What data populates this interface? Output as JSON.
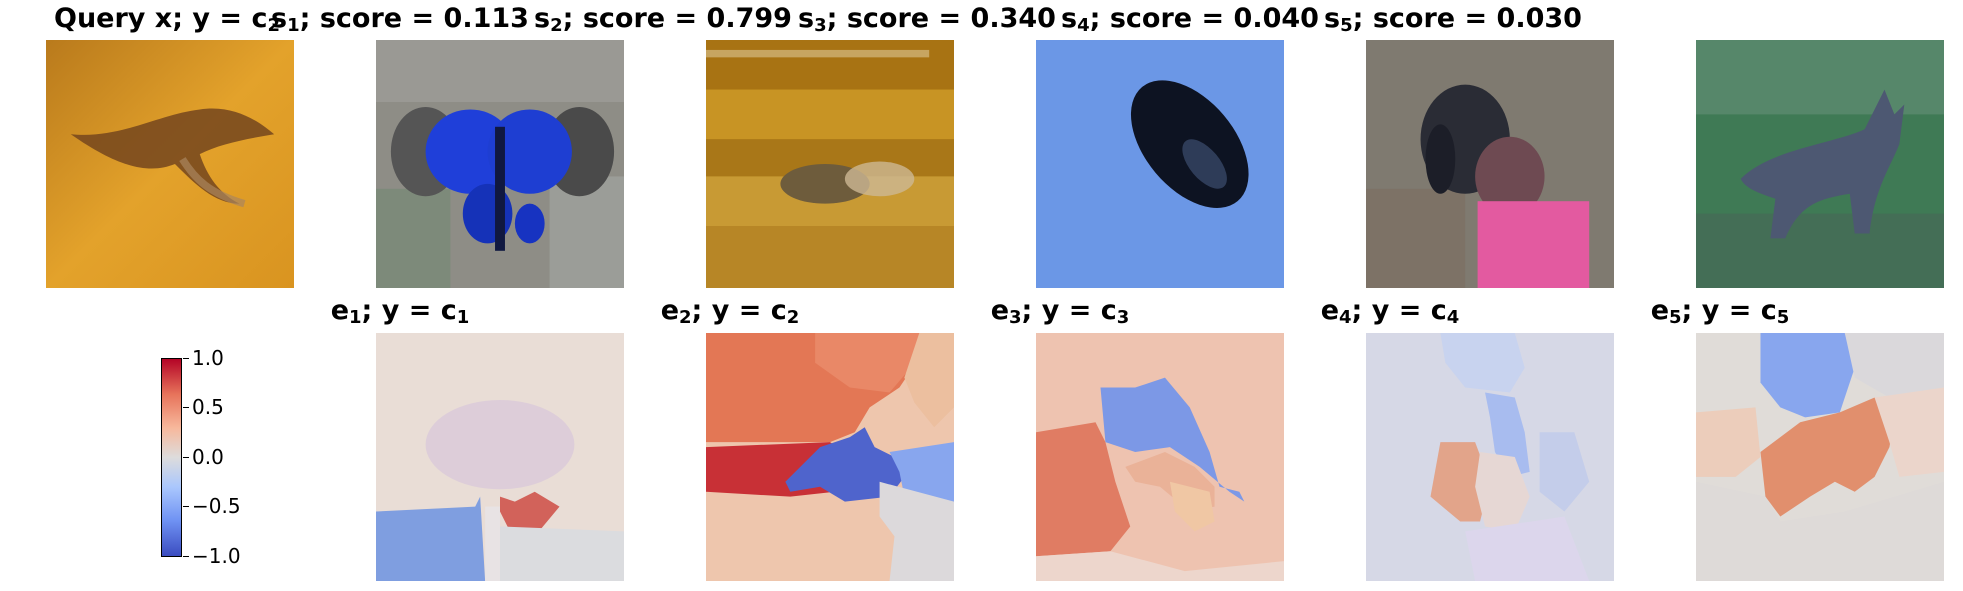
{
  "top_row": {
    "query": {
      "title_main": "Query x; y = c",
      "title_sub": "2"
    },
    "s": [
      {
        "label": "s",
        "sub": "1",
        "rest": "; score = 0.113"
      },
      {
        "label": "s",
        "sub": "2",
        "rest": "; score = 0.799"
      },
      {
        "label": "s",
        "sub": "3",
        "rest": "; score = 0.340"
      },
      {
        "label": "s",
        "sub": "4",
        "rest": "; score = 0.040"
      },
      {
        "label": "s",
        "sub": "5",
        "rest": "; score = 0.030"
      }
    ]
  },
  "bottom_row": {
    "e": [
      {
        "label": "e",
        "sub": "1",
        "rest": "; y = c",
        "csub": "1"
      },
      {
        "label": "e",
        "sub": "2",
        "rest": "; y = c",
        "csub": "2"
      },
      {
        "label": "e",
        "sub": "3",
        "rest": "; y = c",
        "csub": "3"
      },
      {
        "label": "e",
        "sub": "4",
        "rest": "; y = c",
        "csub": "4"
      },
      {
        "label": "e",
        "sub": "5",
        "rest": "; y = c",
        "csub": "5"
      }
    ]
  },
  "colorbar": {
    "ticks": [
      "1.0",
      "0.5",
      "0.0",
      "−0.5",
      "−1.0"
    ],
    "colormap": [
      "#b40426",
      "#dddcdc",
      "#3b4cc0"
    ]
  }
}
